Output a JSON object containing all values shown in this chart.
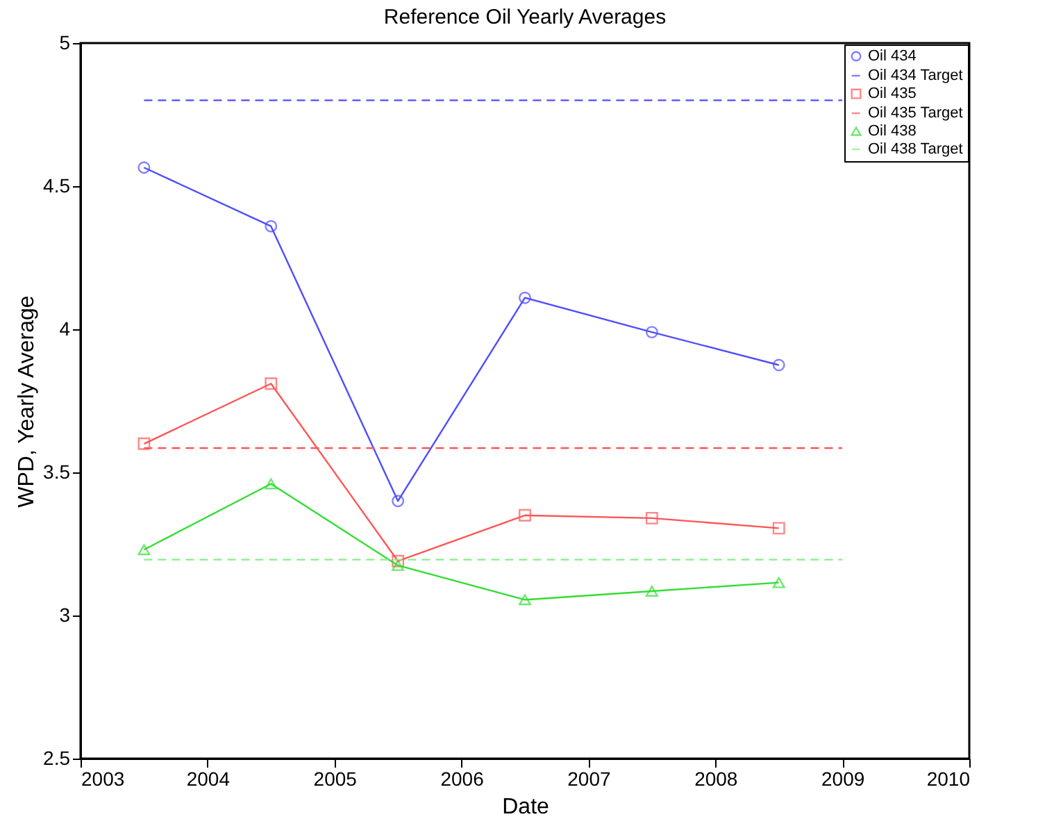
{
  "chart_data": {
    "type": "line",
    "title": "Reference Oil Yearly Averages",
    "xlabel": "Date",
    "ylabel": "WPD, Yearly Average",
    "xlim": [
      2003,
      2010
    ],
    "xticks": [
      2003,
      2004,
      2005,
      2006,
      2007,
      2008,
      2009,
      2010
    ],
    "ylim": [
      2.5,
      5
    ],
    "yticks": [
      2.5,
      3,
      3.5,
      4,
      4.5,
      5
    ],
    "grid": false,
    "legend": "top right",
    "series": [
      {
        "name": "Oil 434",
        "color": "#4d4dff",
        "marker": "circle",
        "line_style": "solid",
        "x": [
          2003.5,
          2004.5,
          2005.5,
          2006.5,
          2007.5,
          2008.5
        ],
        "values": [
          4.565,
          4.36,
          3.4,
          4.11,
          3.99,
          3.875
        ]
      },
      {
        "name": "Oil 434 Target",
        "color": "#4d4dff",
        "marker": "none",
        "line_style": "dashed",
        "x": [
          2003.5,
          2009
        ],
        "values": [
          4.8,
          4.8
        ]
      },
      {
        "name": "Oil 435",
        "color": "#ff5555",
        "marker": "square",
        "line_style": "solid",
        "x": [
          2003.5,
          2004.5,
          2005.5,
          2006.5,
          2007.5,
          2008.5
        ],
        "values": [
          3.6,
          3.81,
          3.19,
          3.35,
          3.34,
          3.305
        ]
      },
      {
        "name": "Oil 435 Target",
        "color": "#ff5555",
        "marker": "none",
        "line_style": "dashed",
        "x": [
          2003.5,
          2009
        ],
        "values": [
          3.585,
          3.585
        ]
      },
      {
        "name": "Oil 438",
        "color": "#33dd33",
        "marker": "triangle",
        "line_style": "solid",
        "x": [
          2003.5,
          2004.5,
          2005.5,
          2006.5,
          2007.5,
          2008.5
        ],
        "values": [
          3.23,
          3.46,
          3.175,
          3.055,
          3.085,
          3.115
        ]
      },
      {
        "name": "Oil 438 Target",
        "color": "#88ee88",
        "marker": "none",
        "line_style": "dashed",
        "x": [
          2003.5,
          2009
        ],
        "values": [
          3.195,
          3.195
        ]
      }
    ]
  }
}
